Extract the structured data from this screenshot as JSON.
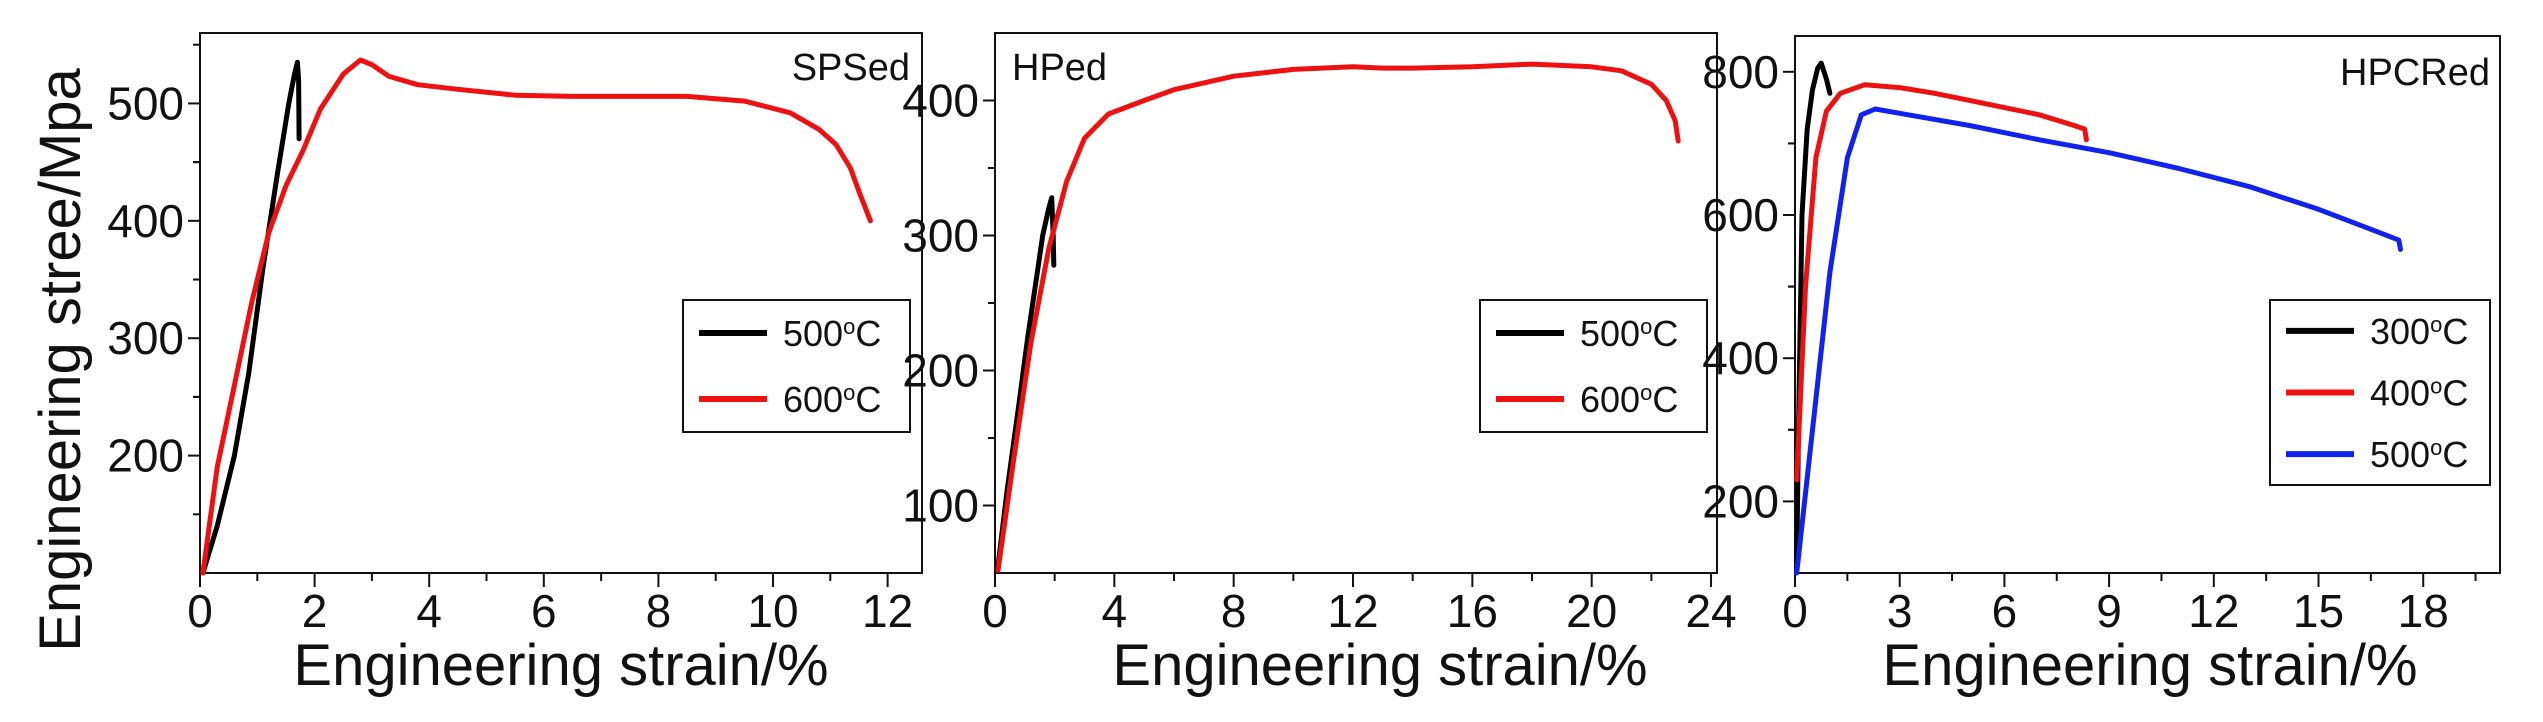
{
  "ylabel": "Engineering stree/Mpa",
  "chart_data": [
    {
      "type": "line",
      "title": "SPSed",
      "xlabel": "Engineering strain/%",
      "xlim": [
        0,
        12.6
      ],
      "ylim": [
        100,
        560
      ],
      "xticks": [
        0,
        2,
        4,
        6,
        8,
        10,
        12
      ],
      "xtick_labels": [
        "0",
        "2",
        "4",
        "6",
        "8",
        "10",
        "12"
      ],
      "yticks": [
        200,
        300,
        400,
        500
      ],
      "ytick_labels": [
        "200",
        "300",
        "400",
        "500"
      ],
      "legend": "center-right",
      "series": [
        {
          "name": "500°C",
          "label_main": "500",
          "label_sup": "o",
          "label_tail": "C",
          "color": "#000000",
          "points": [
            [
              0.05,
              100
            ],
            [
              0.3,
              140
            ],
            [
              0.6,
              200
            ],
            [
              0.85,
              270
            ],
            [
              1.1,
              360
            ],
            [
              1.35,
              440
            ],
            [
              1.55,
              500
            ],
            [
              1.65,
              525
            ],
            [
              1.7,
              535
            ],
            [
              1.72,
              520
            ],
            [
              1.73,
              470
            ]
          ]
        },
        {
          "name": "600°C",
          "label_main": "600",
          "label_sup": "o",
          "label_tail": "C",
          "color": "#ee1111",
          "points": [
            [
              0.05,
              100
            ],
            [
              0.3,
              190
            ],
            [
              0.6,
              260
            ],
            [
              0.9,
              330
            ],
            [
              1.2,
              390
            ],
            [
              1.5,
              430
            ],
            [
              1.8,
              460
            ],
            [
              2.1,
              495
            ],
            [
              2.5,
              525
            ],
            [
              2.8,
              537
            ],
            [
              3.0,
              533
            ],
            [
              3.3,
              523
            ],
            [
              3.8,
              516
            ],
            [
              4.5,
              512
            ],
            [
              5.5,
              507
            ],
            [
              6.5,
              506
            ],
            [
              7.5,
              506
            ],
            [
              8.5,
              506
            ],
            [
              9.5,
              502
            ],
            [
              10.3,
              492
            ],
            [
              10.8,
              478
            ],
            [
              11.1,
              465
            ],
            [
              11.35,
              445
            ],
            [
              11.5,
              425
            ],
            [
              11.7,
              400
            ]
          ]
        }
      ]
    },
    {
      "type": "line",
      "title": "HPed",
      "xlabel": "Engineering strain/%",
      "xlim": [
        0,
        24.2
      ],
      "ylim": [
        50,
        450
      ],
      "xticks": [
        0,
        4,
        8,
        12,
        16,
        20,
        24
      ],
      "xtick_labels": [
        "0",
        "4",
        "8",
        "12",
        "16",
        "20",
        "24"
      ],
      "yticks": [
        100,
        200,
        300,
        400
      ],
      "ytick_labels": [
        "100",
        "200",
        "300",
        "400"
      ],
      "legend": "center-right",
      "series": [
        {
          "name": "500°C",
          "label_main": "500",
          "label_sup": "o",
          "label_tail": "C",
          "color": "#000000",
          "points": [
            [
              0.1,
              55
            ],
            [
              0.4,
              110
            ],
            [
              0.8,
              175
            ],
            [
              1.1,
              225
            ],
            [
              1.4,
              270
            ],
            [
              1.6,
              300
            ],
            [
              1.8,
              320
            ],
            [
              1.9,
              328
            ],
            [
              1.95,
              300
            ],
            [
              1.97,
              278
            ]
          ]
        },
        {
          "name": "600°C",
          "label_main": "600",
          "label_sup": "o",
          "label_tail": "C",
          "color": "#ee1111",
          "points": [
            [
              0.1,
              52
            ],
            [
              0.6,
              130
            ],
            [
              1.2,
              220
            ],
            [
              1.8,
              290
            ],
            [
              2.4,
              340
            ],
            [
              3.0,
              372
            ],
            [
              3.8,
              390
            ],
            [
              5.0,
              400
            ],
            [
              6.0,
              408
            ],
            [
              7.0,
              413
            ],
            [
              8.0,
              418
            ],
            [
              10.0,
              423
            ],
            [
              12.0,
              425
            ],
            [
              13.0,
              424
            ],
            [
              14.0,
              424
            ],
            [
              16.0,
              425
            ],
            [
              18.0,
              427
            ],
            [
              20.0,
              425
            ],
            [
              21.0,
              422
            ],
            [
              22.0,
              412
            ],
            [
              22.5,
              400
            ],
            [
              22.8,
              385
            ],
            [
              22.9,
              370
            ]
          ]
        }
      ]
    },
    {
      "type": "line",
      "title": "HPCRed",
      "xlabel": "Engineering strain/%",
      "xlim": [
        0,
        20.2
      ],
      "ylim": [
        100,
        850
      ],
      "xticks": [
        0,
        3,
        6,
        9,
        12,
        15,
        18
      ],
      "xtick_labels": [
        "0",
        "3",
        "6",
        "9",
        "12",
        "15",
        "18"
      ],
      "yticks": [
        200,
        400,
        600,
        800
      ],
      "ytick_labels": [
        "200",
        "400",
        "600",
        "800"
      ],
      "legend": "center-right",
      "series": [
        {
          "name": "300°C",
          "label_main": "300",
          "label_sup": "o",
          "label_tail": "C",
          "color": "#000000",
          "points": [
            [
              0.05,
              110
            ],
            [
              0.1,
              300
            ],
            [
              0.2,
              600
            ],
            [
              0.35,
              720
            ],
            [
              0.5,
              775
            ],
            [
              0.65,
              805
            ],
            [
              0.75,
              812
            ],
            [
              0.9,
              790
            ],
            [
              1.0,
              770
            ]
          ]
        },
        {
          "name": "400°C",
          "label_main": "400",
          "label_sup": "o",
          "label_tail": "C",
          "color": "#ee1111",
          "points": [
            [
              0.05,
              230
            ],
            [
              0.3,
              500
            ],
            [
              0.6,
              680
            ],
            [
              0.9,
              745
            ],
            [
              1.3,
              770
            ],
            [
              2.0,
              782
            ],
            [
              3.0,
              778
            ],
            [
              4.0,
              770
            ],
            [
              5.0,
              760
            ],
            [
              6.0,
              750
            ],
            [
              7.0,
              740
            ],
            [
              8.0,
              725
            ],
            [
              8.3,
              720
            ],
            [
              8.35,
              705
            ]
          ]
        },
        {
          "name": "500°C",
          "label_main": "500",
          "label_sup": "o",
          "label_tail": "C",
          "color": "#1122ee",
          "points": [
            [
              0.05,
              100
            ],
            [
              0.5,
              300
            ],
            [
              1.0,
              520
            ],
            [
              1.5,
              680
            ],
            [
              1.9,
              740
            ],
            [
              2.3,
              748
            ],
            [
              3.0,
              742
            ],
            [
              5.0,
              725
            ],
            [
              7.0,
              705
            ],
            [
              9.0,
              687
            ],
            [
              11.0,
              665
            ],
            [
              13.0,
              640
            ],
            [
              15.0,
              608
            ],
            [
              16.5,
              580
            ],
            [
              17.3,
              565
            ],
            [
              17.35,
              552
            ]
          ]
        }
      ]
    }
  ]
}
